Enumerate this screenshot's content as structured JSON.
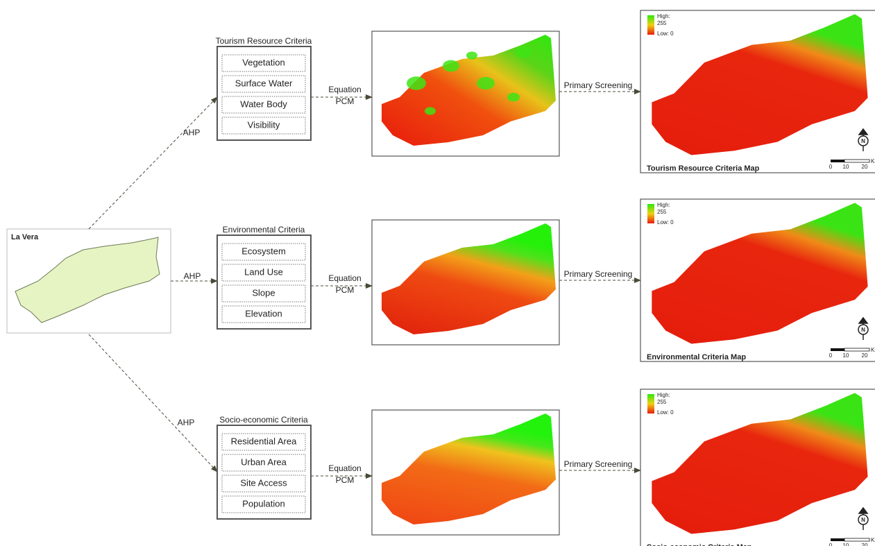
{
  "source": {
    "label": "La Vera"
  },
  "rows": [
    {
      "edge_label": "AHP",
      "criteria_title": "Tourism Resource Criteria",
      "items": [
        "Vegetation",
        "Surface Water",
        "Water Body",
        "Visibility"
      ],
      "equation": [
        "Equation",
        "PCM"
      ],
      "screening": "Primary Screening",
      "map_title": "Tourism Resource Criteria Map",
      "legend": {
        "high": "High:",
        "high_value": 255,
        "low": "Low: 0"
      },
      "scale": [
        0,
        10,
        20
      ],
      "scale_unit": "Km"
    },
    {
      "edge_label": "AHP",
      "criteria_title": "Environmental Criteria",
      "items": [
        "Ecosystem",
        "Land Use",
        "Slope",
        "Elevation"
      ],
      "equation": [
        "Equation",
        "PCM"
      ],
      "screening": "Primary Screening",
      "map_title": "Environmental Criteria Map",
      "legend": {
        "high": "High:",
        "high_value": 255,
        "low": "Low: 0"
      },
      "scale": [
        0,
        10,
        20
      ],
      "scale_unit": "Km"
    },
    {
      "edge_label": "AHP",
      "criteria_title": "Socio-economic Criteria",
      "items": [
        "Residential Area",
        "Urban Area",
        "Site Access",
        "Population"
      ],
      "equation": [
        "Equation",
        "PCM"
      ],
      "screening": "Primary Screening",
      "map_title": "Socio-economic Criteria Map",
      "legend": {
        "high": "High:",
        "high_value": 255,
        "low": "Low: 0"
      },
      "scale": [
        0,
        10,
        20
      ],
      "scale_unit": "Km"
    }
  ]
}
